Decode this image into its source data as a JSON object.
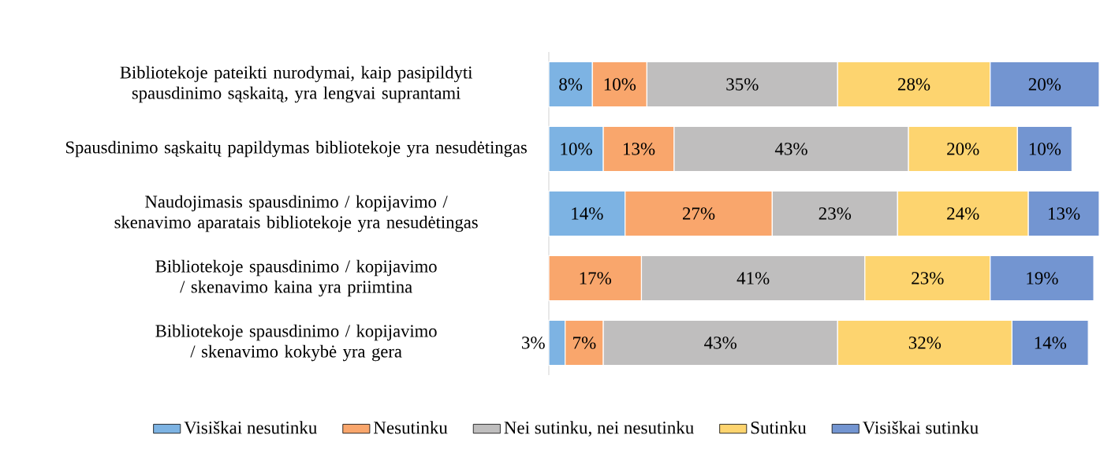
{
  "chart_data": {
    "type": "bar",
    "orientation": "horizontal",
    "stacked": true,
    "legend": "bottom",
    "categories": [
      "Bibliotekoje pateikti nurodymai, kaip pasipildyti spausdinimo sąskaitą, yra lengvai suprantami",
      "Spausdinimo sąskaitų papildymas bibliotekoje yra nesudėtingas",
      "Naudojimasis spausdinimo / kopijavimo / skenavimo aparatais bibliotekoje yra nesudėtingas",
      "Bibliotekoje spausdinimo / kopijavimo / skenavimo kaina yra priimtina",
      "Bibliotekoje spausdinimo / kopijavimo / skenavimo kokybė yra gera"
    ],
    "series": [
      {
        "name": "Visiškai nesutinku",
        "color": "#7db3e3",
        "values": [
          8,
          10,
          14,
          null,
          3
        ],
        "value_labels": [
          "8%",
          "10%",
          "14%",
          null,
          "3%"
        ]
      },
      {
        "name": "Nesutinku",
        "color": "#f9a66c",
        "values": [
          10,
          13,
          27,
          17,
          7
        ],
        "value_labels": [
          "10%",
          "13%",
          "27%",
          "17%",
          "7%"
        ]
      },
      {
        "name": "Nei sutinku, nei nesutinku",
        "color": "#bfbebe",
        "values": [
          35,
          43,
          23,
          41,
          43
        ],
        "value_labels": [
          "35%",
          "43%",
          "23%",
          "41%",
          "43%"
        ]
      },
      {
        "name": "Sutinku",
        "color": "#fdd46f",
        "values": [
          28,
          20,
          24,
          23,
          32
        ],
        "value_labels": [
          "28%",
          "20%",
          "24%",
          "23%",
          "32%"
        ]
      },
      {
        "name": "Visiškai sutinku",
        "color": "#7395d1",
        "values": [
          20,
          10,
          13,
          19,
          14
        ],
        "value_labels": [
          "20%",
          "10%",
          "13%",
          "19%",
          "14%"
        ]
      }
    ]
  }
}
